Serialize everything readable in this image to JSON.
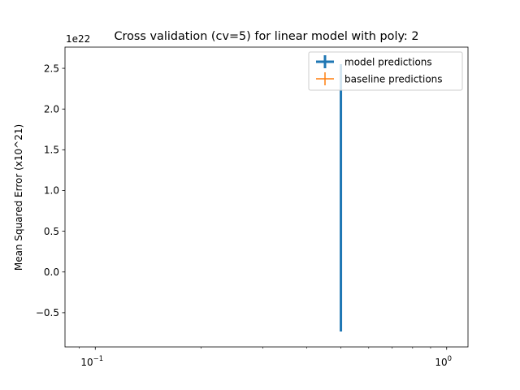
{
  "chart_data": {
    "type": "errorbar",
    "title": "Cross validation (cv=5) for linear model with poly: 2",
    "xlabel": "",
    "ylabel": "Mean Squared Error (x10^21)",
    "xscale": "log",
    "xlim": [
      0.082,
      1.15
    ],
    "ylim": [
      -0.92,
      2.76
    ],
    "y_offset_text": "1e22",
    "x_ticks": [
      {
        "value": 0.1,
        "label": "10^{-1}",
        "base": "10",
        "exp": "−1"
      },
      {
        "value": 1,
        "label": "10^{0}",
        "base": "10",
        "exp": "0"
      }
    ],
    "x_minor_ticks": [
      0.09,
      0.2,
      0.3,
      0.4,
      0.5,
      0.6,
      0.7,
      0.8,
      0.9
    ],
    "y_ticks": [
      {
        "value": -0.5,
        "label": "−0.5"
      },
      {
        "value": 0.0,
        "label": "0.0"
      },
      {
        "value": 0.5,
        "label": "0.5"
      },
      {
        "value": 1.0,
        "label": "1.0"
      },
      {
        "value": 1.5,
        "label": "1.5"
      },
      {
        "value": 2.0,
        "label": "2.0"
      },
      {
        "value": 2.5,
        "label": "2.5"
      }
    ],
    "grid": false,
    "legend_position": "upper right",
    "series": [
      {
        "name": "model predictions",
        "color": "#1f77b4",
        "points": [
          {
            "x": 0.5,
            "y": 0.91,
            "yerr": 1.64
          }
        ]
      },
      {
        "name": "baseline predictions",
        "color": "#ff7f0e",
        "points": [
          {
            "x": 0.5,
            "y": 0.0,
            "yerr": 0.0
          }
        ]
      }
    ]
  }
}
